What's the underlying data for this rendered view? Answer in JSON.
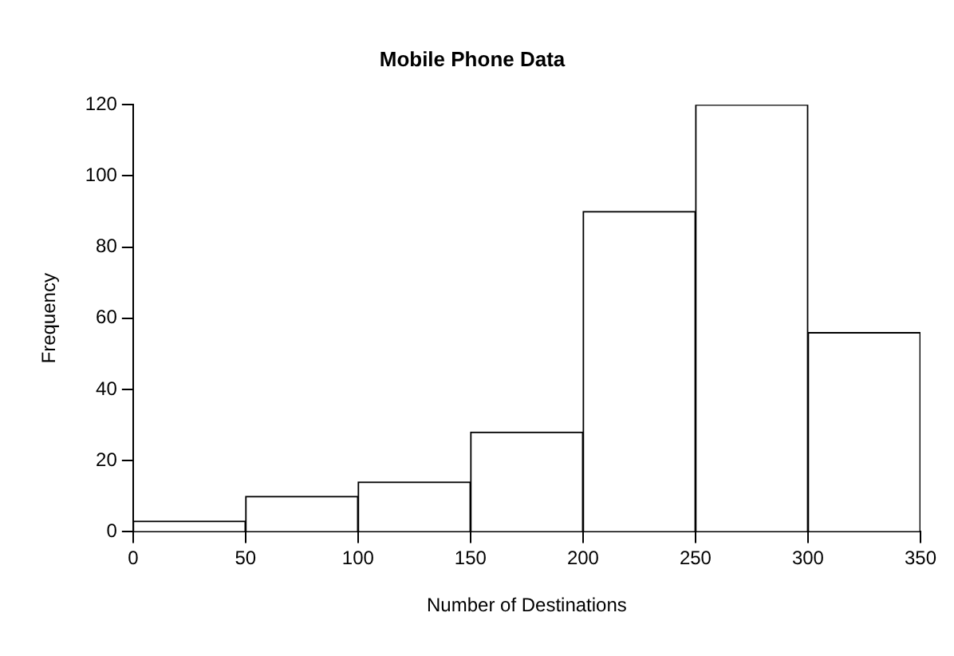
{
  "chart_data": {
    "type": "histogram",
    "title": "Mobile Phone Data",
    "xlabel": "Number of Destinations",
    "ylabel": "Frequency",
    "bins": [
      0,
      50,
      100,
      150,
      200,
      250,
      300,
      350
    ],
    "values": [
      3,
      10,
      14,
      28,
      90,
      120,
      56
    ],
    "color": "#ffffff",
    "xlim": [
      0,
      350
    ],
    "xticks": [
      0,
      50,
      100,
      150,
      200,
      250,
      300,
      350
    ],
    "ylim": [
      0,
      120
    ],
    "yticks": [
      0,
      20,
      40,
      60,
      80,
      100,
      120
    ],
    "grid": false,
    "legend": false
  }
}
